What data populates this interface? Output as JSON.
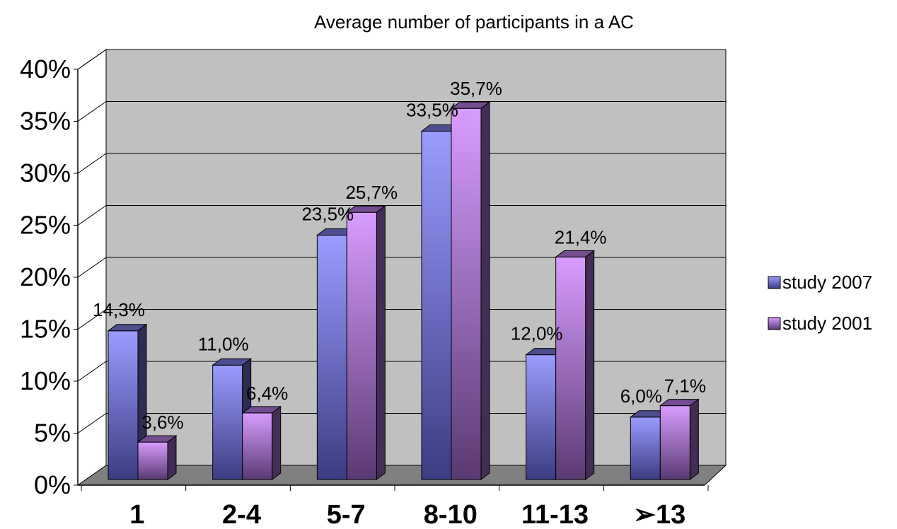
{
  "chart_data": {
    "type": "bar",
    "title": "Average number of participants in a AC",
    "categories": [
      "1",
      "2-4",
      "5-7",
      "8-10",
      "11-13",
      "➢13"
    ],
    "series": [
      {
        "name": "study 2007",
        "values": [
          14.3,
          11.0,
          23.5,
          33.5,
          12.0,
          6.0
        ],
        "labels": [
          "14,3%",
          "11,0%",
          "23,5%",
          "33,5%",
          "12,0%",
          "6,0%"
        ],
        "color": "#8080f0"
      },
      {
        "name": "study 2001",
        "values": [
          3.6,
          6.4,
          25.7,
          35.7,
          21.4,
          7.1
        ],
        "labels": [
          "3,6%",
          "6,4%",
          "25,7%",
          "35,7%",
          "21,4%",
          "7,1%"
        ],
        "color": "#c080f0"
      }
    ],
    "yticks": [
      "0%",
      "5%",
      "10%",
      "15%",
      "20%",
      "25%",
      "30%",
      "35%",
      "40%"
    ],
    "ylim": [
      0,
      40
    ],
    "grid": true,
    "legend_position": "right",
    "style": "3d-clustered-column",
    "wall_color": "#c0c0c0",
    "floor_color": "#808080"
  }
}
